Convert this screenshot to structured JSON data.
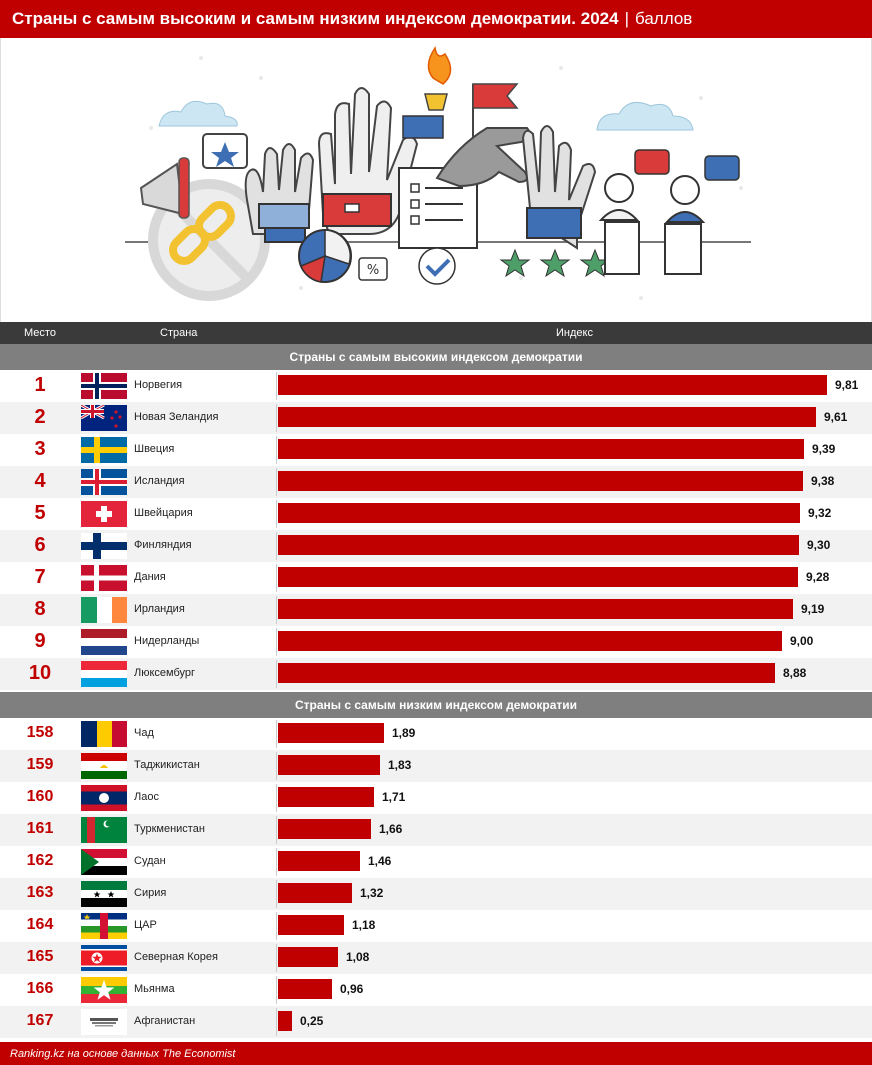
{
  "header": {
    "title": "Страны с самым высоким и самым низким индексом демократии. 2024",
    "separator": "|",
    "unit": "баллов"
  },
  "columns": {
    "rank": "Место",
    "country": "Страна",
    "index": "Индекс"
  },
  "footer": {
    "source": "Ranking.kz на основе данных The Economist"
  },
  "colors": {
    "accent": "#c00000",
    "header_dark": "#3a3a3a",
    "section_grey": "#7f7f7f"
  },
  "chart_data": {
    "type": "bar",
    "orientation": "horizontal",
    "xlim": [
      0,
      10
    ],
    "groups": [
      {
        "title": "Страны с самым высоким индексом демократии",
        "rows": [
          {
            "rank": "1",
            "country": "Норвегия",
            "flag": "norway-flag",
            "value": 9.81,
            "label": "9,81"
          },
          {
            "rank": "2",
            "country": "Новая Зеландия",
            "flag": "new-zealand-flag",
            "value": 9.61,
            "label": "9,61"
          },
          {
            "rank": "3",
            "country": "Швеция",
            "flag": "sweden-flag",
            "value": 9.39,
            "label": "9,39"
          },
          {
            "rank": "4",
            "country": "Исландия",
            "flag": "iceland-flag",
            "value": 9.38,
            "label": "9,38"
          },
          {
            "rank": "5",
            "country": "Швейцария",
            "flag": "switzerland-flag",
            "value": 9.32,
            "label": "9,32"
          },
          {
            "rank": "6",
            "country": "Финляндия",
            "flag": "finland-flag",
            "value": 9.3,
            "label": "9,30"
          },
          {
            "rank": "7",
            "country": "Дания",
            "flag": "denmark-flag",
            "value": 9.28,
            "label": "9,28"
          },
          {
            "rank": "8",
            "country": "Ирландия",
            "flag": "ireland-flag",
            "value": 9.19,
            "label": "9,19"
          },
          {
            "rank": "9",
            "country": "Нидерланды",
            "flag": "netherlands-flag",
            "value": 9.0,
            "label": "9,00"
          },
          {
            "rank": "10",
            "country": "Люксембург",
            "flag": "luxembourg-flag",
            "value": 8.88,
            "label": "8,88"
          }
        ]
      },
      {
        "title": "Страны с самым низким индексом демократии",
        "rows": [
          {
            "rank": "158",
            "country": "Чад",
            "flag": "chad-flag",
            "value": 1.89,
            "label": "1,89"
          },
          {
            "rank": "159",
            "country": "Таджикистан",
            "flag": "tajikistan-flag",
            "value": 1.83,
            "label": "1,83"
          },
          {
            "rank": "160",
            "country": "Лаос",
            "flag": "laos-flag",
            "value": 1.71,
            "label": "1,71"
          },
          {
            "rank": "161",
            "country": "Туркменистан",
            "flag": "turkmenistan-flag",
            "value": 1.66,
            "label": "1,66"
          },
          {
            "rank": "162",
            "country": "Судан",
            "flag": "sudan-flag",
            "value": 1.46,
            "label": "1,46"
          },
          {
            "rank": "163",
            "country": "Сирия",
            "flag": "syria-flag",
            "value": 1.32,
            "label": "1,32"
          },
          {
            "rank": "164",
            "country": "ЦАР",
            "flag": "car-flag",
            "value": 1.18,
            "label": "1,18"
          },
          {
            "rank": "165",
            "country": "Северная Корея",
            "flag": "north-korea-flag",
            "value": 1.08,
            "label": "1,08"
          },
          {
            "rank": "166",
            "country": "Мьянма",
            "flag": "myanmar-flag",
            "value": 0.96,
            "label": "0,96"
          },
          {
            "rank": "167",
            "country": "Афганистан",
            "flag": "afghanistan-flag",
            "value": 0.25,
            "label": "0,25"
          }
        ]
      }
    ]
  }
}
